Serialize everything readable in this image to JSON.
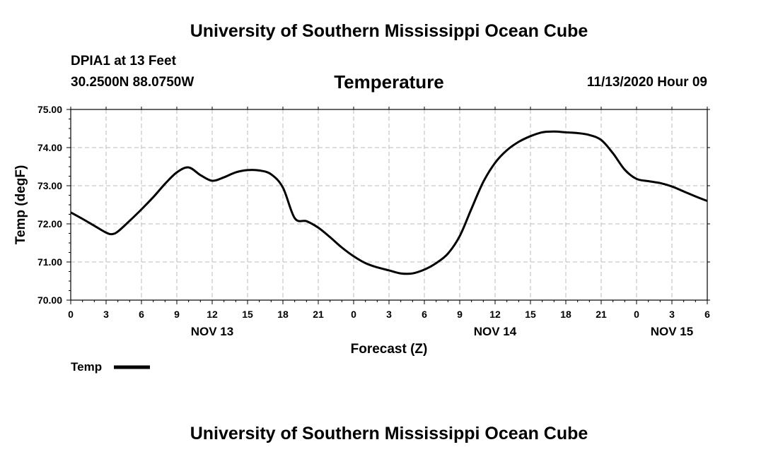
{
  "header": {
    "title": "University of Southern Mississippi Ocean Cube",
    "station": "DPIA1 at 13 Feet",
    "coordinates": "30.2500N 88.0750W",
    "issued": "11/13/2020 Hour 09"
  },
  "footer": {
    "title": "University of Southern Mississippi Ocean Cube"
  },
  "chart_data": {
    "type": "line",
    "title": "Temperature",
    "xlabel": "Forecast (Z)",
    "ylabel": "Temp (degF)",
    "ylim": [
      70.0,
      75.0
    ],
    "yticks": [
      "70.00",
      "71.00",
      "72.00",
      "73.00",
      "74.00",
      "75.00"
    ],
    "xlim_hours": [
      0,
      54
    ],
    "xticks": [
      "0",
      "3",
      "6",
      "9",
      "12",
      "15",
      "18",
      "21",
      "0",
      "3",
      "6",
      "9",
      "12",
      "15",
      "18",
      "21",
      "0",
      "3",
      "6"
    ],
    "day_labels": [
      {
        "label": "NOV 13",
        "hour": 12
      },
      {
        "label": "NOV 14",
        "hour": 36
      },
      {
        "label": "NOV 15",
        "hour": 51
      }
    ],
    "grid": true,
    "legend": {
      "position": "bottom-left",
      "label": "Temp"
    },
    "series": [
      {
        "name": "Temp",
        "x": [
          0,
          1,
          2,
          3,
          3.5,
          4,
          5,
          6,
          7,
          8,
          9,
          10,
          11,
          12,
          13,
          14,
          15,
          16,
          17,
          18,
          19,
          20,
          21,
          22,
          23,
          24,
          25,
          26,
          27,
          28,
          29,
          30,
          31,
          32,
          33,
          34,
          35,
          36,
          37,
          38,
          39,
          40,
          41,
          42,
          43,
          44,
          45,
          46,
          47,
          48,
          49,
          50,
          51,
          52,
          53,
          54
        ],
        "values": [
          72.3,
          72.13,
          71.95,
          71.77,
          71.73,
          71.8,
          72.08,
          72.38,
          72.7,
          73.05,
          73.35,
          73.48,
          73.28,
          73.13,
          73.22,
          73.35,
          73.41,
          73.4,
          73.3,
          72.95,
          72.15,
          72.07,
          71.9,
          71.65,
          71.38,
          71.15,
          70.97,
          70.86,
          70.78,
          70.7,
          70.7,
          70.8,
          70.97,
          71.22,
          71.68,
          72.4,
          73.1,
          73.6,
          73.93,
          74.15,
          74.3,
          74.4,
          74.42,
          74.4,
          74.38,
          74.33,
          74.2,
          73.85,
          73.42,
          73.18,
          73.12,
          73.07,
          72.98,
          72.85,
          72.72,
          72.6
        ]
      }
    ]
  }
}
